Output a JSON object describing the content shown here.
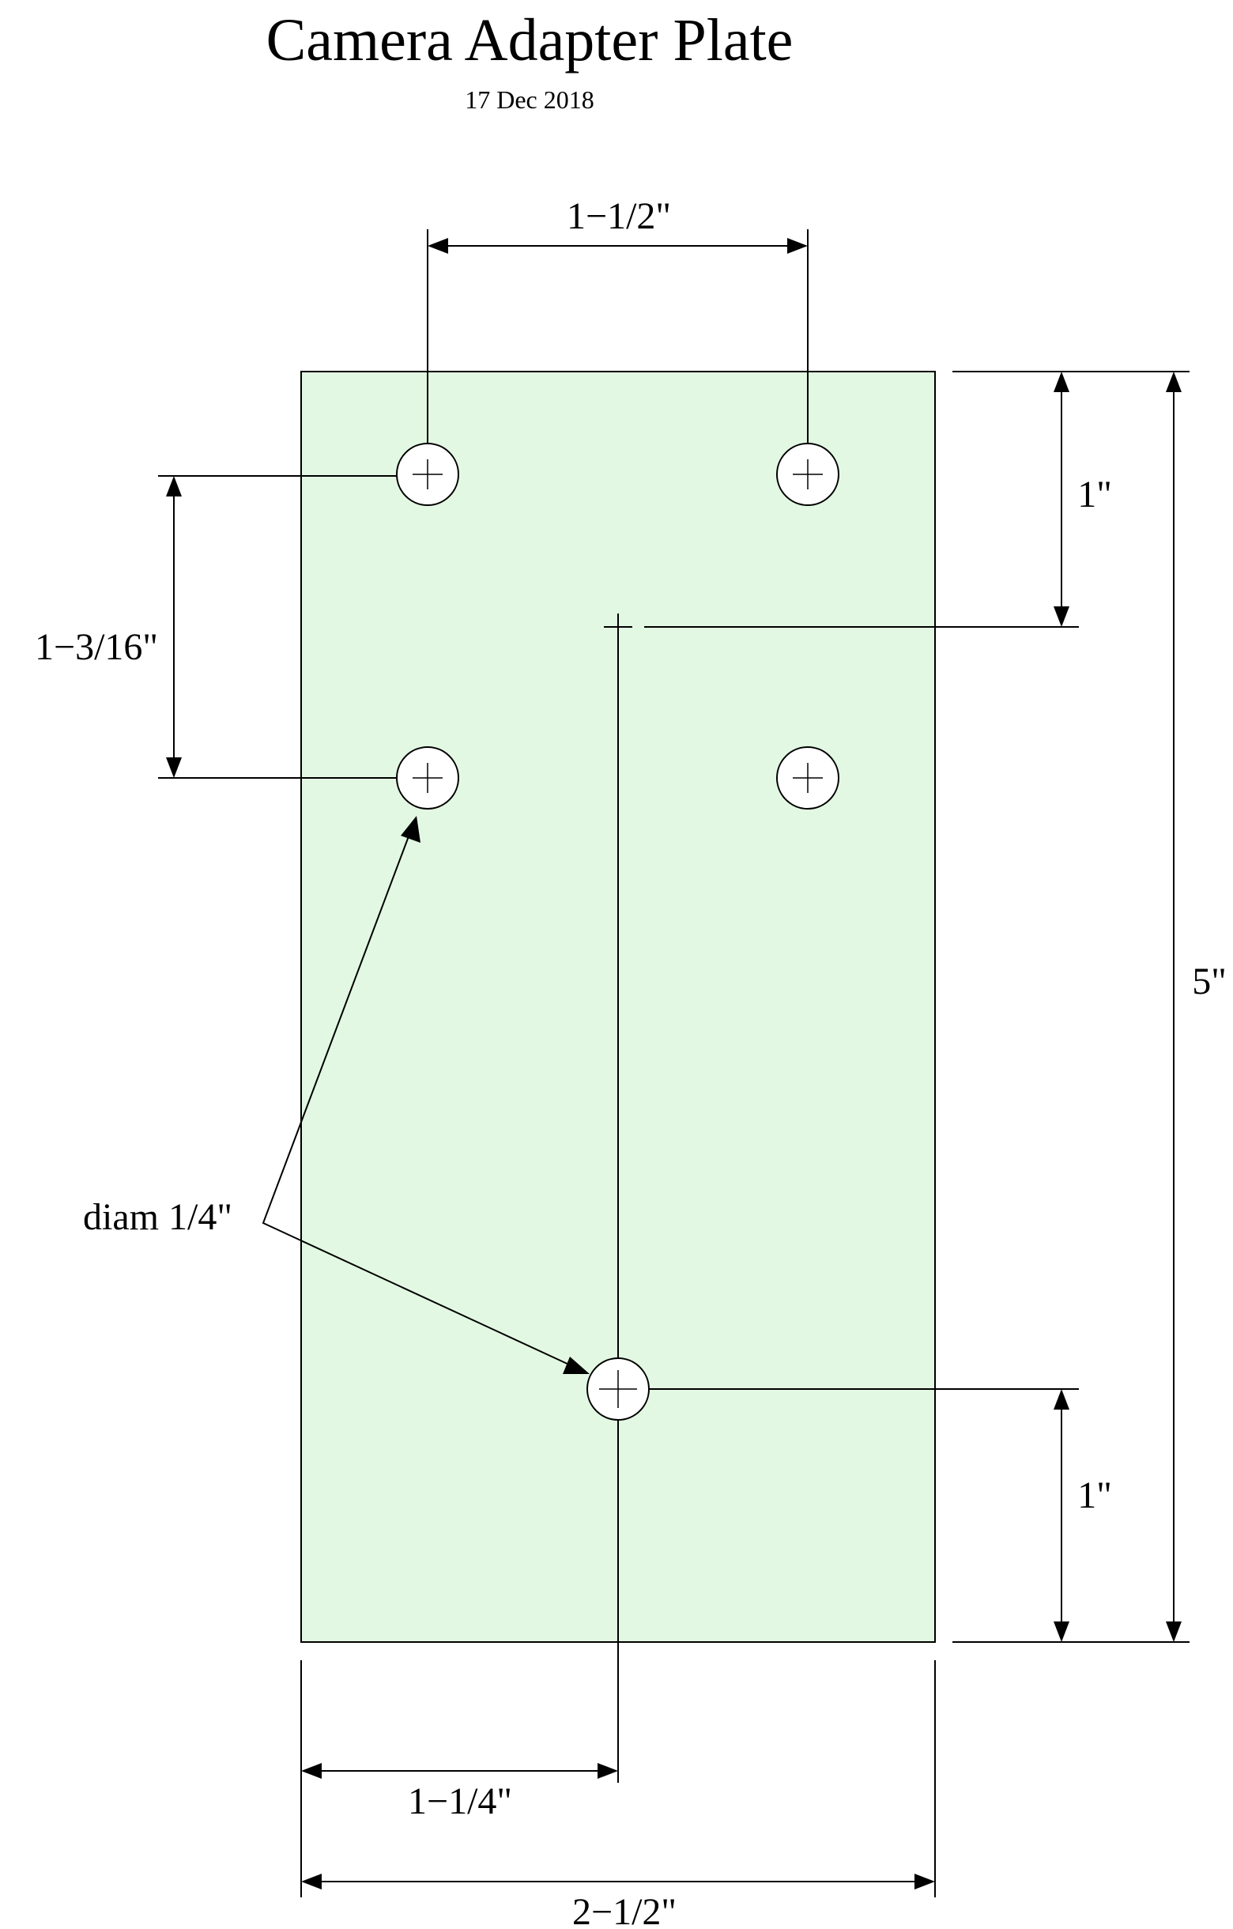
{
  "header": {
    "title": "Camera Adapter Plate",
    "date": "17 Dec 2018"
  },
  "colors": {
    "plate_fill": "#e2f8e2",
    "line": "#000000",
    "hole_fill": "#ffffff"
  },
  "dimensions": {
    "top_hole_spacing": "1−1/2\"",
    "top_offset": "1\"",
    "vertical_hole_spacing": "1−3/16\"",
    "overall_height": "5\"",
    "bottom_offset": "1\"",
    "center_offset": "1−1/4\"",
    "overall_width": "2−1/2\""
  },
  "callout": {
    "hole_diameter": "diam 1/4\""
  }
}
